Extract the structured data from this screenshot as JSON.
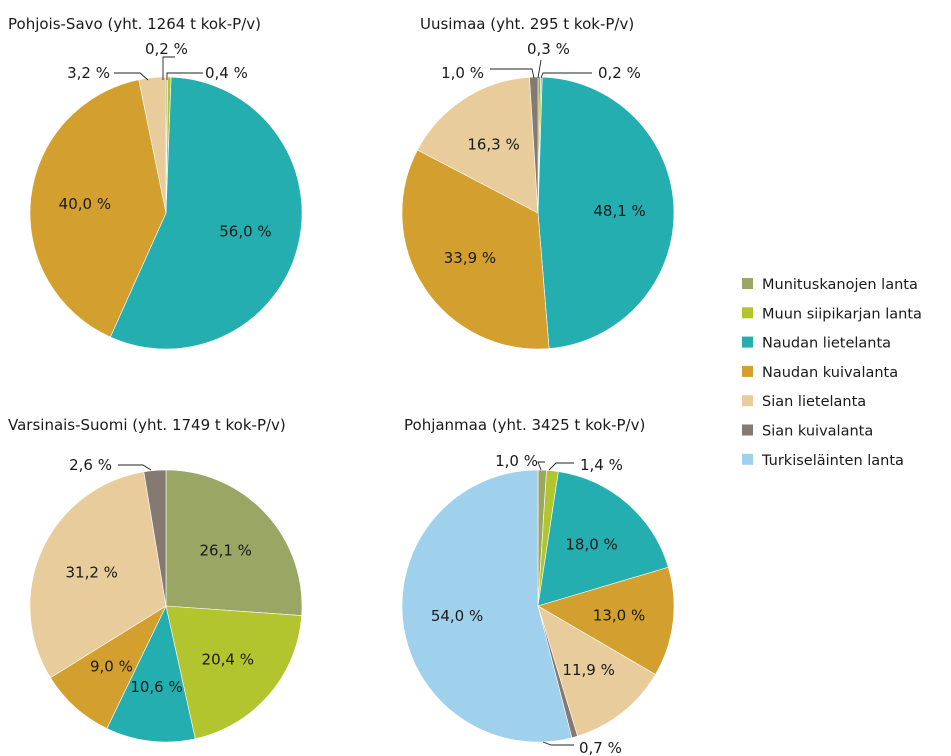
{
  "legend": [
    {
      "name": "Munituskanojen lanta",
      "color": "#9aa664"
    },
    {
      "name": "Muun siipikarjan lanta",
      "color": "#b3c52e"
    },
    {
      "name": "Naudan lietelanta",
      "color": "#24aeb0"
    },
    {
      "name": "Naudan kuivalanta",
      "color": "#d3a02f"
    },
    {
      "name": "Sian lietelanta",
      "color": "#e9cc9b"
    },
    {
      "name": "Sian kuivalanta",
      "color": "#847a71"
    },
    {
      "name": "Turkiseläinten lanta",
      "color": "#9fd0ec"
    }
  ],
  "chart_data": [
    {
      "type": "pie",
      "title": "Pohjois-Savo (yht. 1264 t kok-P/v)",
      "slices": [
        {
          "series": "Munituskanojen lanta",
          "value": 0.2,
          "label": "0,2 %"
        },
        {
          "series": "Muun siipikarjan lanta",
          "value": 0.4,
          "label": "0,4 %"
        },
        {
          "series": "Naudan lietelanta",
          "value": 56.0,
          "label": "56,0 %"
        },
        {
          "series": "Naudan kuivalanta",
          "value": 40.0,
          "label": "40,0 %"
        },
        {
          "series": "Sian lietelanta",
          "value": 3.2,
          "label": "3,2 %"
        }
      ]
    },
    {
      "type": "pie",
      "title": "Uusimaa (yht. 295 t kok-P/v)",
      "slices": [
        {
          "series": "Munituskanojen lanta",
          "value": 0.3,
          "label": "0,3 %"
        },
        {
          "series": "Muun siipikarjan lanta",
          "value": 0.2,
          "label": "0,2 %"
        },
        {
          "series": "Naudan lietelanta",
          "value": 48.1,
          "label": "48,1 %"
        },
        {
          "series": "Naudan kuivalanta",
          "value": 33.9,
          "label": "33,9 %"
        },
        {
          "series": "Sian lietelanta",
          "value": 16.3,
          "label": "16,3 %"
        },
        {
          "series": "Sian kuivalanta",
          "value": 1.0,
          "label": "1,0 %"
        }
      ]
    },
    {
      "type": "pie",
      "title": "Varsinais-Suomi (yht. 1749 t kok-P/v)",
      "slices": [
        {
          "series": "Munituskanojen lanta",
          "value": 26.1,
          "label": "26,1 %"
        },
        {
          "series": "Muun siipikarjan lanta",
          "value": 20.4,
          "label": "20,4 %"
        },
        {
          "series": "Naudan lietelanta",
          "value": 10.6,
          "label": "10,6 %"
        },
        {
          "series": "Naudan kuivalanta",
          "value": 9.0,
          "label": "9,0 %"
        },
        {
          "series": "Sian lietelanta",
          "value": 31.2,
          "label": "31,2 %"
        },
        {
          "series": "Sian kuivalanta",
          "value": 2.6,
          "label": "2,6 %"
        }
      ]
    },
    {
      "type": "pie",
      "title": "Pohjanmaa (yht. 3425 t kok-P/v)",
      "slices": [
        {
          "series": "Munituskanojen lanta",
          "value": 1.0,
          "label": "1,0 %"
        },
        {
          "series": "Muun siipikarjan lanta",
          "value": 1.4,
          "label": "1,4 %"
        },
        {
          "series": "Naudan lietelanta",
          "value": 18.0,
          "label": "18,0 %"
        },
        {
          "series": "Naudan kuivalanta",
          "value": 13.0,
          "label": "13,0 %"
        },
        {
          "series": "Sian lietelanta",
          "value": 11.9,
          "label": "11,9 %"
        },
        {
          "series": "Sian kuivalanta",
          "value": 0.7,
          "label": "0,7 %"
        },
        {
          "series": "Turkiseläinten lanta",
          "value": 54.0,
          "label": "54,0 %"
        }
      ]
    }
  ]
}
